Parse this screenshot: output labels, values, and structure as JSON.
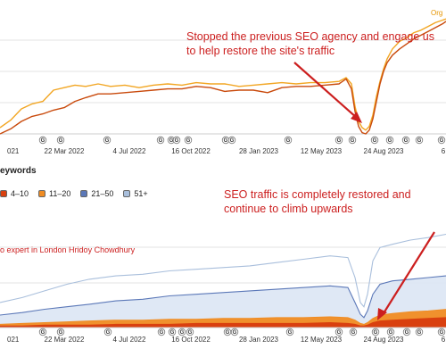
{
  "top_right_label": "Org",
  "annotations": {
    "top": "Stopped the previous SEO agency and engage us to help restore the site's traffic",
    "bottom": "SEO traffic is completely restored and continue to climb upwards"
  },
  "watermark": "o expert in London Hridoy Chowdhury",
  "section_title": "eywords",
  "colors": {
    "organic_light": "#f2a623",
    "organic_dark": "#c94a0c",
    "gridline": "#e3e3e3",
    "annotation": "#cc1f1f",
    "pos_4_10": "#d9400f",
    "pos_11_20": "#f08c22",
    "pos_21_50": "#5b78b8",
    "pos_51_plus": "#a9bfdc"
  },
  "legend": [
    {
      "label": "4–10",
      "color": "#d9400f"
    },
    {
      "label": "11–20",
      "color": "#f08c22"
    },
    {
      "label": "21–50",
      "color": "#5b78b8"
    },
    {
      "label": "51+",
      "color": "#a9bfdc"
    }
  ],
  "chart_data": [
    {
      "type": "line",
      "title": "",
      "xlabel": "",
      "ylabel": "",
      "x_tick_labels": [
        "021",
        "22 Mar 2022",
        "4 Jul 2022",
        "16 Oct 2022",
        "28 Jan 2023",
        "12 May 2023",
        "24 Aug 2023",
        "6"
      ],
      "x": [
        0,
        12,
        24,
        36,
        48,
        60,
        72,
        84,
        96,
        110,
        124,
        140,
        156,
        172,
        188,
        204,
        220,
        236,
        252,
        268,
        284,
        300,
        316,
        332,
        348,
        364,
        380,
        388,
        394,
        398,
        402,
        406,
        410,
        414,
        418,
        422,
        426,
        430,
        434,
        440,
        448,
        456,
        464,
        472,
        480,
        488,
        496,
        500
      ],
      "series": [
        {
          "name": "",
          "color": "#f2a623",
          "values": [
            5,
            11,
            20,
            24,
            26,
            35,
            37,
            39,
            38,
            40,
            38,
            39,
            37,
            39,
            40,
            39,
            41,
            40,
            40,
            38,
            39,
            40,
            41,
            40,
            41,
            41,
            42,
            45,
            40,
            22,
            10,
            5,
            3,
            6,
            15,
            30,
            42,
            52,
            60,
            68,
            74,
            77,
            81,
            83,
            86,
            89,
            91,
            92
          ]
        },
        {
          "name": "",
          "color": "#c94a0c",
          "values": [
            0,
            4,
            10,
            14,
            16,
            19,
            21,
            26,
            29,
            32,
            32,
            33,
            34,
            35,
            36,
            36,
            38,
            37,
            34,
            35,
            35,
            33,
            37,
            38,
            38,
            39,
            40,
            44,
            36,
            18,
            6,
            1,
            0,
            3,
            12,
            26,
            40,
            50,
            57,
            63,
            68,
            72,
            76,
            79,
            82,
            85,
            88,
            90
          ]
        }
      ],
      "markers": {
        "label": "G"
      }
    },
    {
      "type": "area",
      "title": "",
      "xlabel": "",
      "ylabel": "",
      "x_tick_labels": [
        "021",
        "22 Mar 2022",
        "4 Jul 2022",
        "16 Oct 2022",
        "28 Jan 2023",
        "12 May 2023",
        "24 Aug 2023",
        "6"
      ],
      "x": [
        0,
        25,
        50,
        75,
        100,
        130,
        160,
        190,
        220,
        250,
        280,
        310,
        340,
        370,
        390,
        398,
        404,
        408,
        412,
        418,
        426,
        440,
        460,
        480,
        500
      ],
      "series": [
        {
          "name": "4–10",
          "color": "#d9400f",
          "values": [
            2,
            2,
            3,
            3,
            3,
            4,
            4,
            4,
            5,
            5,
            5,
            5,
            5,
            6,
            5,
            4,
            2,
            2,
            3,
            6,
            8,
            9,
            10,
            11,
            12
          ]
        },
        {
          "name": "11–20",
          "color": "#f08c22",
          "values": [
            4,
            5,
            6,
            7,
            8,
            9,
            9,
            10,
            10,
            11,
            11,
            12,
            12,
            13,
            12,
            9,
            5,
            4,
            6,
            11,
            15,
            17,
            19,
            20,
            22
          ]
        },
        {
          "name": "21–50",
          "color": "#5b78b8",
          "values": [
            15,
            18,
            22,
            25,
            28,
            32,
            34,
            38,
            40,
            42,
            44,
            46,
            48,
            50,
            48,
            30,
            16,
            12,
            20,
            40,
            52,
            56,
            58,
            60,
            62
          ]
        },
        {
          "name": "51+",
          "color": "#a9bfdc",
          "values": [
            30,
            36,
            44,
            52,
            58,
            62,
            64,
            68,
            70,
            72,
            74,
            78,
            82,
            86,
            84,
            60,
            30,
            25,
            40,
            80,
            96,
            100,
            105,
            108,
            112
          ]
        }
      ],
      "markers": {
        "label": "G"
      }
    }
  ]
}
